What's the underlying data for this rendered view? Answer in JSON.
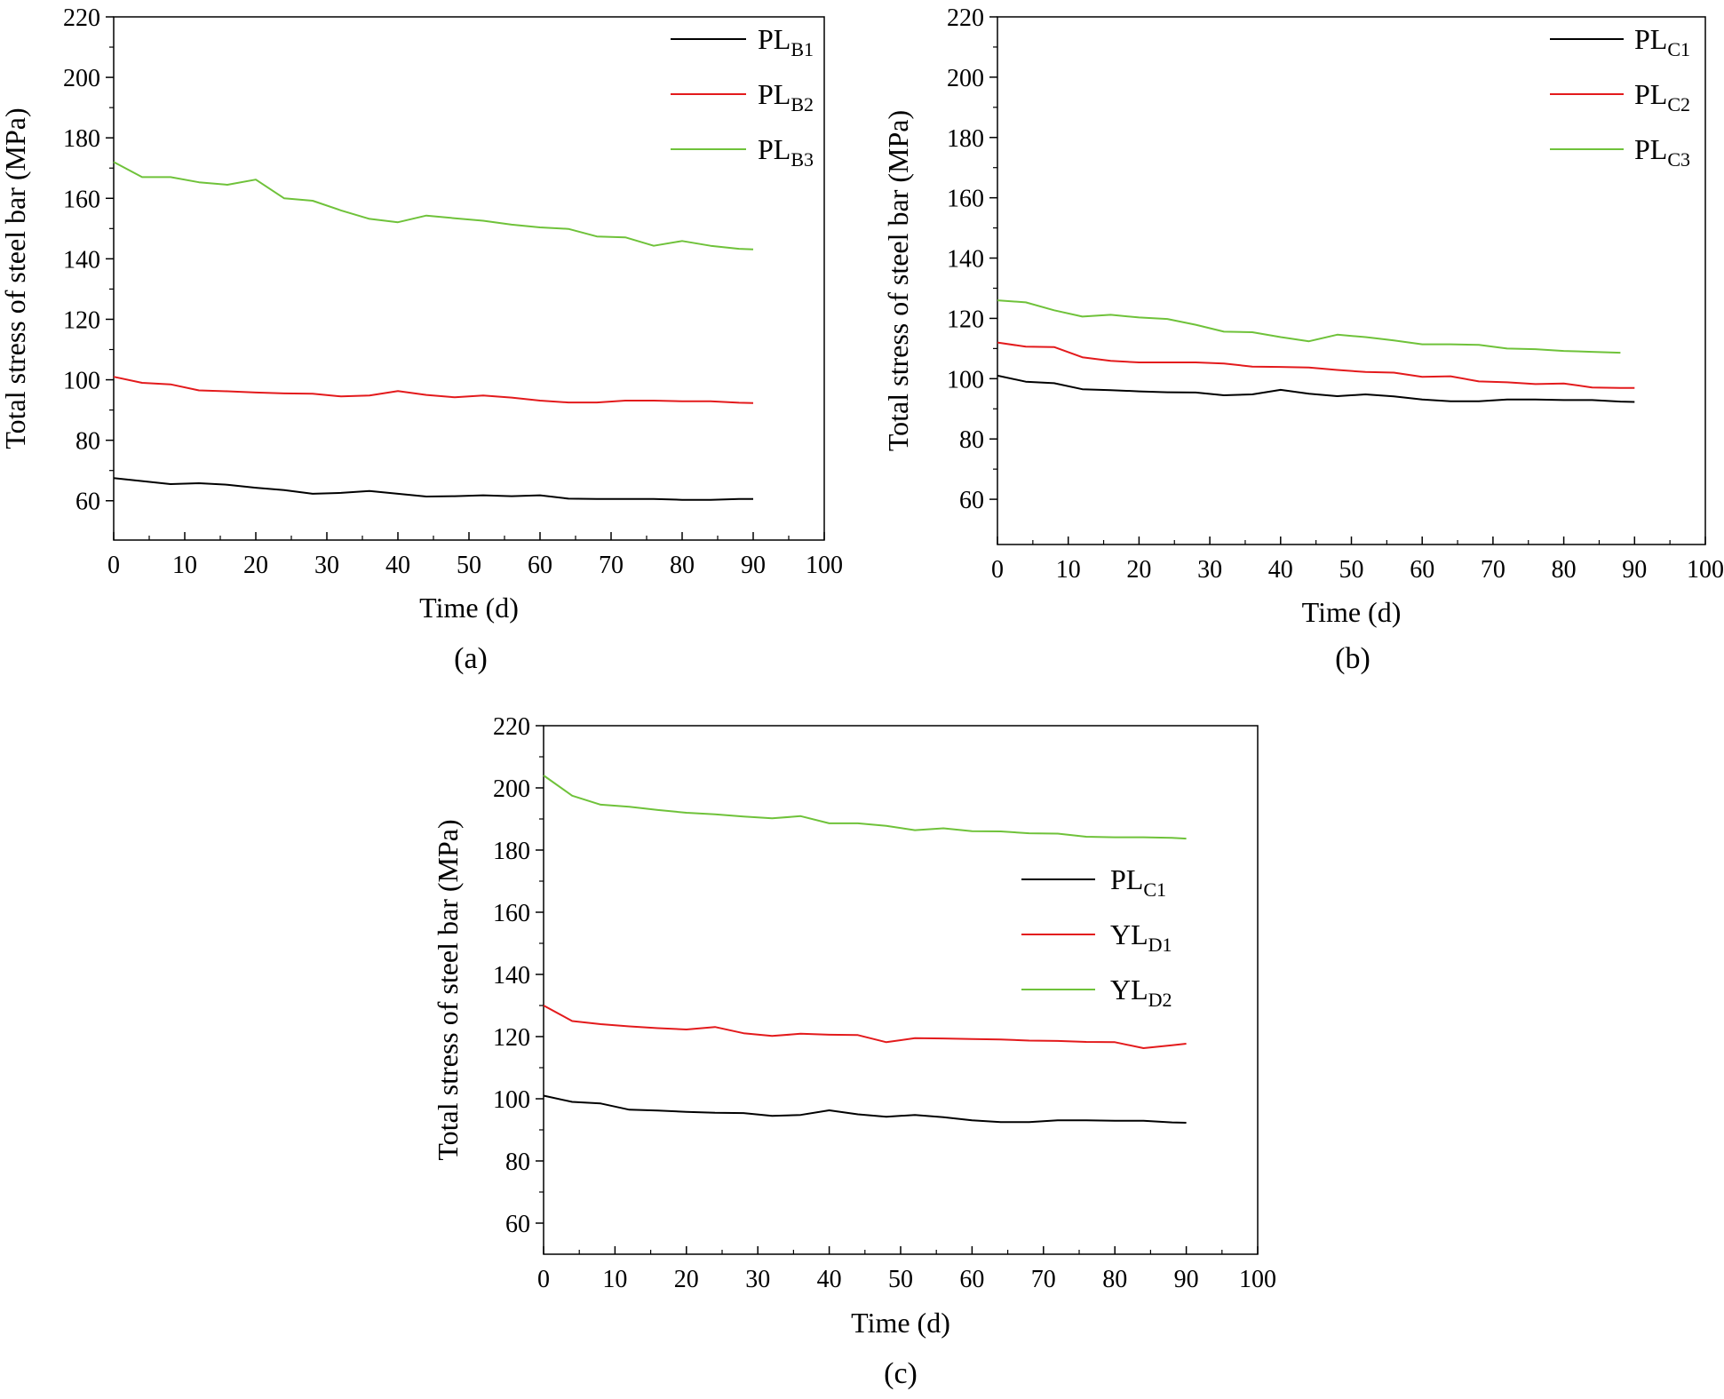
{
  "chart_data": [
    {
      "type": "line",
      "panel": "(a)",
      "xlabel": "Time (d)",
      "ylabel": "Total stress of steel bar (MPa)",
      "xlim": [
        0,
        100
      ],
      "ylim": [
        47,
        220
      ],
      "xticks": [
        0,
        10,
        20,
        30,
        40,
        50,
        60,
        70,
        80,
        90,
        100
      ],
      "yticks": [
        60,
        80,
        100,
        120,
        140,
        160,
        180,
        200,
        220
      ],
      "legend_position": "top-right",
      "grid": false,
      "series": [
        {
          "name": "PL",
          "sub": "B1",
          "color": "#000000",
          "x": [
            0,
            4,
            8,
            12,
            16,
            20,
            24,
            28,
            32,
            36,
            40,
            44,
            48,
            52,
            56,
            60,
            64,
            68,
            72,
            76,
            80,
            84,
            88,
            90
          ],
          "y": [
            67.5,
            66.5,
            65.5,
            65.8,
            65.3,
            64.3,
            63.5,
            62.3,
            62.6,
            63.2,
            62.3,
            61.4,
            61.5,
            61.8,
            61.5,
            61.8,
            60.7,
            60.6,
            60.6,
            60.6,
            60.3,
            60.3,
            60.6,
            60.6
          ]
        },
        {
          "name": "PL",
          "sub": "B2",
          "color": "#e31a1c",
          "x": [
            0,
            4,
            8,
            12,
            16,
            20,
            24,
            28,
            32,
            36,
            40,
            44,
            48,
            52,
            56,
            60,
            64,
            68,
            72,
            76,
            80,
            84,
            88,
            90
          ],
          "y": [
            101,
            99,
            98.5,
            96.5,
            96.2,
            95.8,
            95.5,
            95.4,
            94.5,
            94.8,
            96.3,
            95,
            94.2,
            94.8,
            94.1,
            93.1,
            92.5,
            92.5,
            93.1,
            93.1,
            92.9,
            92.9,
            92.4,
            92.3
          ]
        },
        {
          "name": "PL",
          "sub": "B3",
          "color": "#6fc23a",
          "x": [
            0,
            4,
            8,
            12,
            16,
            20,
            24,
            28,
            32,
            36,
            40,
            44,
            48,
            52,
            56,
            60,
            64,
            68,
            72,
            76,
            80,
            84,
            88,
            90
          ],
          "y": [
            172,
            167,
            167,
            165.3,
            164.5,
            166.2,
            160,
            159.2,
            156,
            153.2,
            152.1,
            154.3,
            153.4,
            152.6,
            151.3,
            150.4,
            149.9,
            147.4,
            147.1,
            144.3,
            145.9,
            144.3,
            143.3,
            143.1
          ]
        }
      ]
    },
    {
      "type": "line",
      "panel": "(b)",
      "xlabel": "Time (d)",
      "ylabel": "Total stress of steel bar (MPa)",
      "xlim": [
        0,
        100
      ],
      "ylim": [
        45,
        220
      ],
      "xticks": [
        0,
        10,
        20,
        30,
        40,
        50,
        60,
        70,
        80,
        90,
        100
      ],
      "yticks": [
        60,
        80,
        100,
        120,
        140,
        160,
        180,
        200,
        220
      ],
      "legend_position": "top-right",
      "grid": false,
      "series": [
        {
          "name": "PL",
          "sub": "C1",
          "color": "#000000",
          "x": [
            0,
            4,
            8,
            12,
            16,
            20,
            24,
            28,
            32,
            36,
            40,
            44,
            48,
            52,
            56,
            60,
            64,
            68,
            72,
            76,
            80,
            84,
            88,
            90
          ],
          "y": [
            101,
            99,
            98.5,
            96.5,
            96.2,
            95.8,
            95.5,
            95.4,
            94.5,
            94.8,
            96.3,
            95,
            94.2,
            94.8,
            94.1,
            93.1,
            92.5,
            92.5,
            93.1,
            93.1,
            92.9,
            92.9,
            92.4,
            92.3
          ]
        },
        {
          "name": "PL",
          "sub": "C2",
          "color": "#e31a1c",
          "x": [
            0,
            4,
            8,
            12,
            16,
            20,
            24,
            28,
            32,
            36,
            40,
            44,
            48,
            52,
            56,
            60,
            64,
            68,
            72,
            76,
            80,
            84,
            88,
            90
          ],
          "y": [
            112,
            110.6,
            110.5,
            107.1,
            105.9,
            105.4,
            105.4,
            105.4,
            105,
            104,
            103.9,
            103.7,
            102.9,
            102.2,
            102,
            100.6,
            100.8,
            99.1,
            98.8,
            98.2,
            98.4,
            97.1,
            96.9,
            96.9
          ]
        },
        {
          "name": "PL",
          "sub": "C3",
          "color": "#6fc23a",
          "x": [
            0,
            4,
            8,
            12,
            16,
            20,
            24,
            28,
            32,
            36,
            40,
            44,
            48,
            52,
            56,
            60,
            64,
            68,
            72,
            76,
            80,
            84,
            88
          ],
          "y": [
            126,
            125.3,
            122.7,
            120.6,
            121.2,
            120.3,
            119.8,
            117.9,
            115.6,
            115.4,
            113.8,
            112.4,
            114.6,
            113.8,
            112.7,
            111.4,
            111.4,
            111.2,
            110,
            109.8,
            109.2,
            108.9,
            108.6
          ]
        }
      ]
    },
    {
      "type": "line",
      "panel": "(c)",
      "xlabel": "Time (d)",
      "ylabel": "Total stress of steel bar (MPa)",
      "xlim": [
        0,
        100
      ],
      "ylim": [
        50,
        220
      ],
      "xticks": [
        0,
        10,
        20,
        30,
        40,
        50,
        60,
        70,
        80,
        90,
        100
      ],
      "yticks": [
        60,
        80,
        100,
        120,
        140,
        160,
        180,
        200,
        220
      ],
      "legend_position": "center-right",
      "grid": false,
      "series": [
        {
          "name": "PL",
          "sub": "C1",
          "color": "#000000",
          "x": [
            0,
            4,
            8,
            12,
            16,
            20,
            24,
            28,
            32,
            36,
            40,
            44,
            48,
            52,
            56,
            60,
            64,
            68,
            72,
            76,
            80,
            84,
            88,
            90
          ],
          "y": [
            101,
            99,
            98.5,
            96.5,
            96.2,
            95.8,
            95.5,
            95.4,
            94.5,
            94.8,
            96.3,
            95,
            94.2,
            94.8,
            94.1,
            93.1,
            92.5,
            92.5,
            93.1,
            93.1,
            92.9,
            92.9,
            92.4,
            92.3
          ]
        },
        {
          "name": "YL",
          "sub": "D1",
          "color": "#e31a1c",
          "x": [
            0,
            4,
            8,
            12,
            16,
            20,
            24,
            28,
            32,
            36,
            40,
            44,
            48,
            52,
            56,
            60,
            64,
            68,
            72,
            76,
            80,
            84,
            88,
            90
          ],
          "y": [
            130,
            125,
            124,
            123.3,
            122.7,
            122.3,
            123.1,
            121.1,
            120.2,
            120.9,
            120.6,
            120.5,
            118.2,
            119.5,
            119.4,
            119.2,
            119.1,
            118.7,
            118.6,
            118.3,
            118.2,
            116.3,
            117.2,
            117.7
          ]
        },
        {
          "name": "YL",
          "sub": "D2",
          "color": "#6fc23a",
          "x": [
            0,
            4,
            8,
            12,
            16,
            20,
            24,
            28,
            32,
            36,
            40,
            44,
            48,
            52,
            56,
            60,
            64,
            68,
            72,
            76,
            80,
            84,
            88,
            90
          ],
          "y": [
            204,
            197.5,
            194.6,
            193.9,
            192.9,
            192,
            191.5,
            190.8,
            190.2,
            190.9,
            188.6,
            188.6,
            187.8,
            186.4,
            187,
            186.1,
            186,
            185.4,
            185.3,
            184.3,
            184.1,
            184.1,
            183.9,
            183.7
          ]
        }
      ]
    }
  ]
}
